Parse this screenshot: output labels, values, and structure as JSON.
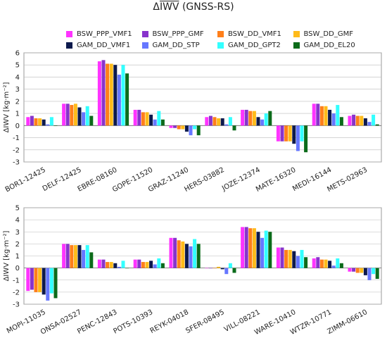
{
  "title": {
    "prefix": "Δ",
    "overlined": "IWV",
    "suffix": " (GNSS-RS)"
  },
  "colors": {
    "BSW_PPP_VMF1": "#ff33ff",
    "BSW_PPP_GMF": "#8833cc",
    "BSW_DD_VMF1": "#ff7f1a",
    "BSW_DD_GMF": "#ffbb1a",
    "GAM_DD_VMF1": "#0d1a4d",
    "GAM_DD_STP": "#6677ff",
    "GAM_DD_GPT2": "#33ffff",
    "GAM_DD_EL20": "#0b6b1a"
  },
  "legend_rows": [
    [
      "BSW_PPP_VMF1",
      "BSW_PPP_GMF",
      "BSW_DD_VMF1",
      "BSW_DD_GMF"
    ],
    [
      "GAM_DD_VMF1",
      "GAM_DD_STP",
      "GAM_DD_GPT2",
      "GAM_DD_EL20"
    ]
  ],
  "chart_data": [
    {
      "type": "bar",
      "ylabel": "ΔIWV [kg·m⁻²]",
      "ylim": [
        -3,
        6
      ],
      "yticks": [
        -3,
        -2,
        -1,
        0,
        1,
        2,
        3,
        4,
        5,
        6
      ],
      "grid": true,
      "categories": [
        "BOR1-12425",
        "DELF-12425",
        "EBRE-08160",
        "GOPE-11520",
        "GRAZ-11240",
        "HERS-03882",
        "JOZE-12374",
        "MATE-16320",
        "MEDI-16144",
        "METS-02963"
      ],
      "series": [
        {
          "name": "BSW_PPP_VMF1",
          "values": [
            0.7,
            1.8,
            5.3,
            1.3,
            -0.2,
            0.7,
            1.3,
            -1.3,
            1.8,
            0.8
          ]
        },
        {
          "name": "BSW_PPP_GMF",
          "values": [
            0.8,
            1.8,
            5.4,
            1.3,
            -0.2,
            0.8,
            1.3,
            -1.3,
            1.8,
            0.9
          ]
        },
        {
          "name": "BSW_DD_VMF1",
          "values": [
            0.6,
            1.7,
            5.1,
            1.1,
            -0.3,
            0.7,
            1.2,
            -1.3,
            1.6,
            0.8
          ]
        },
        {
          "name": "BSW_DD_GMF",
          "values": [
            0.6,
            1.8,
            5.1,
            1.1,
            -0.3,
            0.6,
            1.2,
            -1.3,
            1.6,
            0.8
          ]
        },
        {
          "name": "GAM_DD_VMF1",
          "values": [
            0.5,
            1.5,
            5.0,
            0.9,
            -0.5,
            0.6,
            0.7,
            -1.5,
            1.3,
            0.6
          ]
        },
        {
          "name": "GAM_DD_STP",
          "values": [
            0.1,
            1.1,
            4.2,
            0.5,
            -0.8,
            0.1,
            0.5,
            -2.1,
            1.0,
            0.3
          ]
        },
        {
          "name": "GAM_DD_GPT2",
          "values": [
            0.7,
            1.6,
            5.0,
            1.2,
            -0.3,
            0.7,
            1.0,
            -1.3,
            1.7,
            0.9
          ]
        },
        {
          "name": "GAM_DD_EL20",
          "values": [
            0.0,
            0.8,
            4.3,
            0.5,
            -0.8,
            -0.4,
            1.2,
            -2.2,
            0.7,
            0.1
          ]
        }
      ]
    },
    {
      "type": "bar",
      "ylabel": "ΔIWV [kg·m⁻²]",
      "ylim": [
        -3,
        5
      ],
      "yticks": [
        -3,
        -2,
        -1,
        0,
        1,
        2,
        3,
        4,
        5
      ],
      "grid": true,
      "categories": [
        "MOPI-11035",
        "ONSA-02527",
        "PENC-12843",
        "POTS-10393",
        "REYK-04018",
        "SFER-08495",
        "VILL-08221",
        "WARE-10410",
        "WTZR-10771",
        "ZIMM-06610"
      ],
      "series": [
        {
          "name": "BSW_PPP_VMF1",
          "values": [
            -1.9,
            2.0,
            0.7,
            0.7,
            2.5,
            0.0,
            3.4,
            1.7,
            0.8,
            -0.3
          ]
        },
        {
          "name": "BSW_PPP_GMF",
          "values": [
            -1.8,
            2.0,
            0.7,
            0.7,
            2.5,
            0.0,
            3.4,
            1.7,
            0.9,
            -0.3
          ]
        },
        {
          "name": "BSW_DD_VMF1",
          "values": [
            -2.0,
            1.9,
            0.5,
            0.5,
            2.3,
            0.0,
            3.3,
            1.5,
            0.7,
            -0.4
          ]
        },
        {
          "name": "BSW_DD_GMF",
          "values": [
            -2.0,
            1.9,
            0.5,
            0.5,
            2.2,
            0.1,
            3.3,
            1.5,
            0.7,
            -0.4
          ]
        },
        {
          "name": "GAM_DD_VMF1",
          "values": [
            -2.2,
            1.9,
            0.4,
            0.6,
            2.0,
            -0.1,
            3.0,
            1.4,
            0.6,
            -0.6
          ]
        },
        {
          "name": "GAM_DD_STP",
          "values": [
            -2.7,
            1.5,
            0.1,
            0.3,
            1.8,
            -0.5,
            2.5,
            1.0,
            0.2,
            -1.0
          ]
        },
        {
          "name": "GAM_DD_GPT2",
          "values": [
            -2.1,
            1.9,
            0.6,
            0.8,
            2.4,
            0.4,
            3.1,
            1.5,
            0.8,
            -0.5
          ]
        },
        {
          "name": "GAM_DD_EL20",
          "values": [
            -2.5,
            1.3,
            0.0,
            0.4,
            2.0,
            -0.4,
            3.0,
            0.9,
            0.4,
            -0.9
          ]
        }
      ]
    }
  ]
}
